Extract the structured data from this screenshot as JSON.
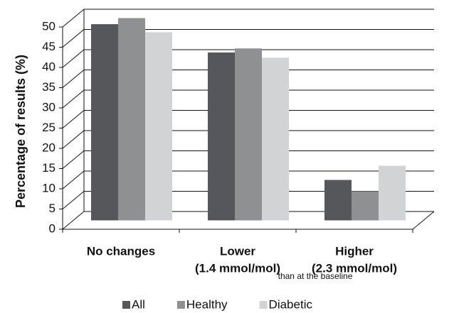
{
  "chart_data": {
    "type": "bar",
    "y_label": "Percentage of results (%)",
    "annotation": "than at the baseline",
    "categories": [
      [
        "No changes"
      ],
      [
        "Lower",
        "(1.4 mmol/mol)"
      ],
      [
        "Higher",
        "(2.3 mmol/mol)"
      ]
    ],
    "series": [
      {
        "name": "All",
        "color": "#55575a",
        "values": [
          48.5,
          41.5,
          10
        ]
      },
      {
        "name": "Healthy",
        "color": "#8e9092",
        "values": [
          50,
          42.5,
          7.2
        ]
      },
      {
        "name": "Diabetic",
        "color": "#d2d3d4",
        "values": [
          46.5,
          40.2,
          13.5
        ]
      }
    ],
    "ylim": [
      0,
      50
    ],
    "yticks": [
      0,
      5,
      10,
      15,
      20,
      25,
      30,
      35,
      40,
      45,
      50
    ],
    "grid": true
  }
}
